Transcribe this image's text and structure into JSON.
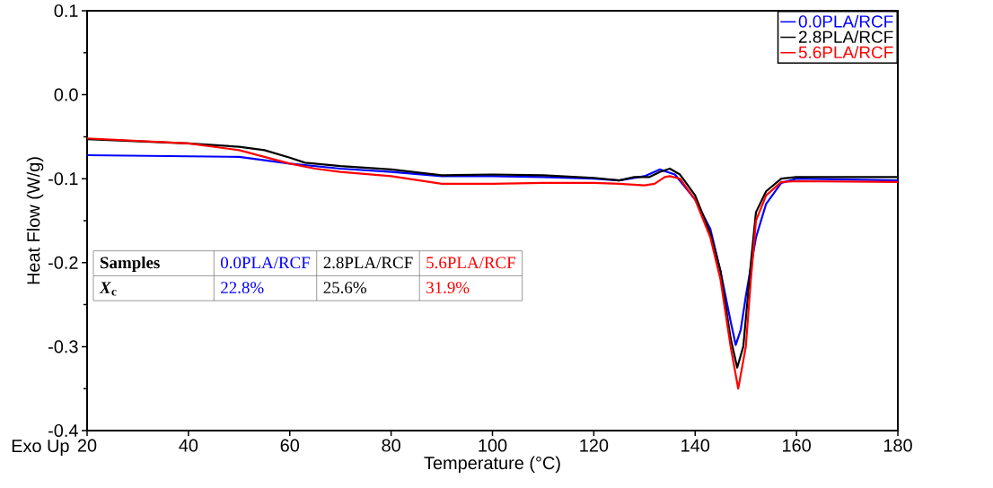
{
  "chart_data": {
    "type": "line",
    "xlabel": "Temperature (°C)",
    "ylabel": "Heat Flow (W/g)",
    "xlim": [
      20,
      180
    ],
    "xticks": [
      20,
      40,
      60,
      80,
      100,
      120,
      140,
      160,
      180
    ],
    "ylim": [
      -0.4,
      0.1
    ],
    "yticks": [
      -0.4,
      -0.3,
      -0.2,
      -0.1,
      {
        "value": 0,
        "label": "0.0"
      },
      0.1
    ],
    "grid": false,
    "legend": "top right",
    "line_style": "solid",
    "marker": "none",
    "annotations": [
      "Exo Up",
      "**Samples**",
      "0.0PLA/RCF",
      "2.8PLA/RCF",
      "5.6PLA/RCF",
      "*X*$_{c}$",
      "22.8%",
      "25.6%",
      "31.9%"
    ],
    "series": [
      {
        "name": "0.0PLA/RCF",
        "color": "#0000ff",
        "x": [
          20,
          50,
          60,
          70,
          80,
          90,
          100,
          110,
          120,
          125,
          130,
          133,
          136,
          140,
          143,
          145,
          147,
          148,
          149,
          150,
          152,
          154,
          157,
          160,
          180
        ],
        "values": [
          -0.072,
          -0.074,
          -0.082,
          -0.088,
          -0.092,
          -0.097,
          -0.097,
          -0.098,
          -0.1,
          -0.102,
          -0.097,
          -0.089,
          -0.095,
          -0.125,
          -0.16,
          -0.21,
          -0.27,
          -0.298,
          -0.28,
          -0.24,
          -0.17,
          -0.13,
          -0.105,
          -0.1,
          -0.102
        ]
      },
      {
        "name": "2.8PLA/RCF",
        "color": "#000000",
        "x": [
          20,
          40,
          50,
          55,
          60,
          63,
          70,
          80,
          90,
          100,
          110,
          120,
          125,
          128,
          131,
          133,
          135,
          137,
          140,
          143,
          145,
          147,
          148.3,
          149.5,
          151,
          152,
          154,
          157,
          160,
          180
        ],
        "values": [
          -0.053,
          -0.058,
          -0.062,
          -0.066,
          -0.075,
          -0.081,
          -0.085,
          -0.089,
          -0.096,
          -0.095,
          -0.096,
          -0.099,
          -0.102,
          -0.098,
          -0.098,
          -0.092,
          -0.088,
          -0.095,
          -0.12,
          -0.165,
          -0.21,
          -0.29,
          -0.325,
          -0.3,
          -0.2,
          -0.14,
          -0.115,
          -0.1,
          -0.098,
          -0.098
        ]
      },
      {
        "name": "5.6PLA/RCF",
        "color": "#ff0000",
        "x": [
          20,
          40,
          50,
          60,
          65,
          70,
          80,
          90,
          100,
          110,
          120,
          125,
          130,
          132,
          134,
          135,
          137,
          140,
          143,
          145,
          147,
          148.5,
          150,
          151,
          152,
          154,
          157,
          160,
          180
        ],
        "values": [
          -0.052,
          -0.058,
          -0.066,
          -0.082,
          -0.088,
          -0.092,
          -0.097,
          -0.106,
          -0.106,
          -0.105,
          -0.105,
          -0.106,
          -0.108,
          -0.106,
          -0.098,
          -0.097,
          -0.1,
          -0.125,
          -0.17,
          -0.22,
          -0.3,
          -0.35,
          -0.3,
          -0.22,
          -0.15,
          -0.12,
          -0.104,
          -0.103,
          -0.104
        ]
      }
    ]
  }
}
